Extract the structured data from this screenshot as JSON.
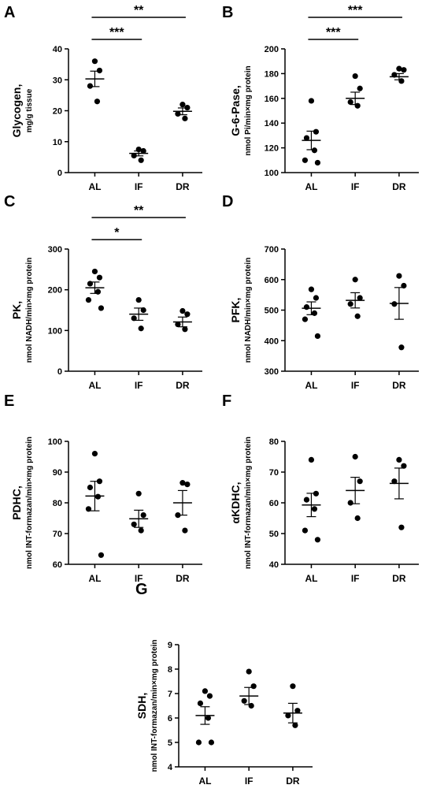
{
  "categories": [
    "AL",
    "IF",
    "DR"
  ],
  "chart_data": [
    {
      "panel": "A",
      "type": "scatter",
      "ylabel_line1": "Glycogen,",
      "ylabel_line2": "mg/g tissue",
      "ylim": [
        0,
        40
      ],
      "yticks": [
        0,
        10,
        20,
        30,
        40
      ],
      "groups": [
        {
          "name": "AL",
          "points": [
            36,
            33,
            28,
            23
          ],
          "mean": 30.3,
          "sem": 2.5
        },
        {
          "name": "IF",
          "points": [
            7.5,
            7,
            5.5,
            4
          ],
          "mean": 6.2,
          "sem": 0.8
        },
        {
          "name": "DR",
          "points": [
            22,
            21,
            19,
            17.5
          ],
          "mean": 19.8,
          "sem": 1.1
        }
      ],
      "brackets": [
        {
          "from": "AL",
          "to": "IF",
          "label": "***",
          "level": 1
        },
        {
          "from": "AL",
          "to": "DR",
          "label": "**",
          "level": 2
        }
      ]
    },
    {
      "panel": "B",
      "type": "scatter",
      "ylabel_line1": "G-6-Pase,",
      "ylabel_line2": "nmol Pi/min×mg protein",
      "ylim": [
        100,
        200
      ],
      "yticks": [
        100,
        120,
        140,
        160,
        180,
        200
      ],
      "groups": [
        {
          "name": "AL",
          "points": [
            158,
            133,
            128,
            118,
            110,
            108
          ],
          "mean": 126,
          "sem": 7.5
        },
        {
          "name": "IF",
          "points": [
            178,
            168,
            157,
            154
          ],
          "mean": 160,
          "sem": 5
        },
        {
          "name": "DR",
          "points": [
            184,
            183,
            179,
            174
          ],
          "mean": 177.5,
          "sem": 2.5
        }
      ],
      "brackets": [
        {
          "from": "AL",
          "to": "IF",
          "label": "***",
          "level": 1
        },
        {
          "from": "AL",
          "to": "DR",
          "label": "***",
          "level": 2
        }
      ]
    },
    {
      "panel": "C",
      "type": "scatter",
      "ylabel_line1": "PK,",
      "ylabel_line2": "nmol NADH/min×mg protein",
      "ylim": [
        0,
        300
      ],
      "yticks": [
        0,
        100,
        200,
        300
      ],
      "groups": [
        {
          "name": "AL",
          "points": [
            245,
            230,
            215,
            195,
            175,
            155
          ],
          "mean": 205,
          "sem": 14
        },
        {
          "name": "IF",
          "points": [
            175,
            150,
            130,
            105
          ],
          "mean": 140,
          "sem": 15
        },
        {
          "name": "DR",
          "points": [
            148,
            140,
            115,
            103
          ],
          "mean": 121,
          "sem": 12
        }
      ],
      "brackets": [
        {
          "from": "AL",
          "to": "IF",
          "label": "*",
          "level": 1
        },
        {
          "from": "AL",
          "to": "DR",
          "label": "**",
          "level": 2
        }
      ]
    },
    {
      "panel": "D",
      "type": "scatter",
      "ylabel_line1": "PFK,",
      "ylabel_line2": "nmol NADH/min×mg protein",
      "ylim": [
        300,
        700
      ],
      "yticks": [
        300,
        400,
        500,
        600,
        700
      ],
      "groups": [
        {
          "name": "AL",
          "points": [
            568,
            540,
            510,
            490,
            470,
            415
          ],
          "mean": 506,
          "sem": 21
        },
        {
          "name": "IF",
          "points": [
            600,
            540,
            520,
            480
          ],
          "mean": 532,
          "sem": 25
        },
        {
          "name": "DR",
          "points": [
            612,
            580,
            520,
            378
          ],
          "mean": 522,
          "sem": 52
        }
      ],
      "brackets": []
    },
    {
      "panel": "E",
      "type": "scatter",
      "ylabel_line1": "PDHC,",
      "ylabel_line2": "nmol INT-formazan/min×mg protein",
      "ylim": [
        60,
        100
      ],
      "yticks": [
        60,
        70,
        80,
        90,
        100
      ],
      "groups": [
        {
          "name": "AL",
          "points": [
            96,
            87,
            85,
            82,
            78,
            63
          ],
          "mean": 82.2,
          "sem": 4.8
        },
        {
          "name": "IF",
          "points": [
            83,
            76,
            73,
            71
          ],
          "mean": 74.8,
          "sem": 2.8
        },
        {
          "name": "DR",
          "points": [
            86.5,
            86,
            76,
            71
          ],
          "mean": 80,
          "sem": 4
        }
      ],
      "brackets": []
    },
    {
      "panel": "F",
      "type": "scatter",
      "ylabel_line1": "αKDHC,",
      "ylabel_line2": "nmol INT-formazan/min×mg protein",
      "ylim": [
        40,
        80
      ],
      "yticks": [
        40,
        50,
        60,
        70,
        80
      ],
      "groups": [
        {
          "name": "AL",
          "points": [
            74,
            63,
            61,
            58,
            51,
            48
          ],
          "mean": 59.3,
          "sem": 3.8
        },
        {
          "name": "IF",
          "points": [
            75,
            67,
            60,
            55
          ],
          "mean": 64,
          "sem": 4.3
        },
        {
          "name": "DR",
          "points": [
            74,
            72,
            67,
            52
          ],
          "mean": 66.3,
          "sem": 5
        }
      ],
      "brackets": []
    },
    {
      "panel": "G",
      "type": "scatter",
      "ylabel_line1": "SDH,",
      "ylabel_line2": "nmol INT-formazan/min×mg protein",
      "ylim": [
        4,
        9
      ],
      "yticks": [
        4,
        5,
        6,
        7,
        8,
        9
      ],
      "groups": [
        {
          "name": "AL",
          "points": [
            7.1,
            6.9,
            6.6,
            6,
            5,
            5
          ],
          "mean": 6.1,
          "sem": 0.36
        },
        {
          "name": "IF",
          "points": [
            7.9,
            7.3,
            6.7,
            6.5
          ],
          "mean": 6.9,
          "sem": 0.35
        },
        {
          "name": "DR",
          "points": [
            7.3,
            6.3,
            6.1,
            5.7
          ],
          "mean": 6.2,
          "sem": 0.4
        }
      ],
      "brackets": []
    }
  ]
}
